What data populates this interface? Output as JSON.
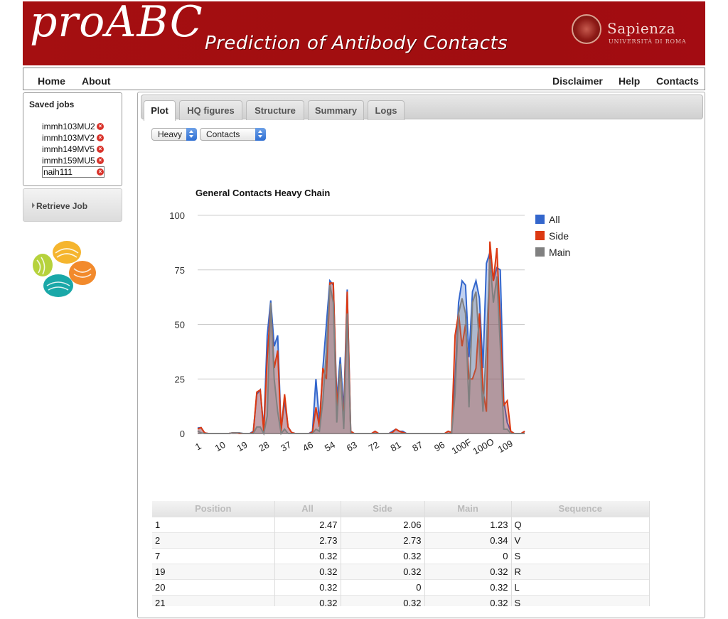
{
  "banner": {
    "logo": "proABC",
    "tagline": "Prediction of Antibody Contacts",
    "university": "Sapienza",
    "university_sub": "UNIVERSITÀ DI ROMA"
  },
  "nav": {
    "left": [
      "Home",
      "About"
    ],
    "right": [
      "Disclaimer",
      "Help",
      "Contacts"
    ]
  },
  "sidebar": {
    "saved_title": "Saved jobs",
    "jobs": [
      "immh103MU2",
      "immh103MV2",
      "immh149MV5",
      "immh159MU5"
    ],
    "current_job": "naih111",
    "retrieve_label": "Retrieve Job"
  },
  "tabs": [
    "Plot",
    "HQ figures",
    "Structure",
    "Summary",
    "Logs"
  ],
  "active_tab": "Plot",
  "selects": {
    "chain": "Heavy",
    "type": "Contacts"
  },
  "chart_data": {
    "type": "area",
    "title": "General Contacts Heavy Chain",
    "xlabel": "",
    "ylabel": "",
    "ylim": [
      0,
      100
    ],
    "yticks": [
      0,
      25,
      50,
      75,
      100
    ],
    "xtick_labels": [
      "1",
      "10",
      "19",
      "28",
      "37",
      "46",
      "54",
      "63",
      "72",
      "81",
      "87",
      "96",
      "100F",
      "100O",
      "109"
    ],
    "legend_position": "right",
    "series": [
      {
        "name": "All",
        "color": "#3366cc",
        "values": [
          2.5,
          2.7,
          0.3,
          0,
          0,
          0,
          0,
          0,
          0,
          0,
          0.3,
          0.3,
          0.3,
          0,
          0,
          0,
          1,
          18,
          20,
          2,
          45,
          61,
          40,
          45,
          2,
          15,
          3,
          0.5,
          0,
          0,
          0,
          0,
          0,
          1,
          25,
          5,
          30,
          50,
          70,
          68,
          15,
          35,
          10,
          66,
          1,
          0,
          0,
          0,
          0,
          0,
          0,
          1,
          0,
          0,
          0,
          0,
          1,
          2,
          1,
          1,
          0,
          0,
          0,
          0,
          0,
          0,
          0,
          0,
          0,
          0,
          0,
          0,
          1,
          0.5,
          25,
          60,
          70,
          68,
          35,
          65,
          70,
          62,
          30,
          78,
          83,
          70,
          76,
          75,
          15,
          5,
          1,
          0,
          0,
          0,
          1
        ]
      },
      {
        "name": "Side",
        "color": "#dc3912",
        "values": [
          2.1,
          2.7,
          0.3,
          0,
          0,
          0,
          0,
          0,
          0,
          0,
          0.3,
          0.3,
          0,
          0,
          0,
          0,
          0.5,
          19,
          20,
          1,
          35,
          58,
          30,
          38,
          1,
          18,
          3,
          0.5,
          0,
          0,
          0,
          0,
          0,
          0.5,
          12,
          3,
          30,
          25,
          69,
          69,
          12,
          30,
          5,
          65,
          1,
          0,
          0,
          0,
          0,
          0,
          0,
          1,
          0,
          0,
          0,
          0,
          0.5,
          2,
          1,
          0.5,
          0,
          0,
          0,
          0,
          0,
          0,
          0,
          0,
          0,
          0,
          0,
          0,
          1,
          0.5,
          45,
          55,
          40,
          50,
          25,
          25,
          30,
          55,
          20,
          10,
          88,
          70,
          85,
          50,
          13,
          15,
          1,
          0,
          0,
          0,
          1
        ]
      },
      {
        "name": "Main",
        "color": "#808080",
        "values": [
          1.2,
          0.3,
          0,
          0,
          0,
          0,
          0,
          0,
          0,
          0,
          0.3,
          0.3,
          0.3,
          0,
          0,
          0,
          0,
          3,
          3,
          0,
          8,
          60,
          25,
          10,
          0,
          2,
          0,
          0,
          0,
          0,
          0,
          0,
          0,
          0,
          2,
          1,
          15,
          38,
          68,
          60,
          5,
          32,
          2,
          55,
          0,
          0,
          0,
          0,
          0,
          0,
          0,
          0,
          0,
          0,
          0,
          0,
          0,
          0,
          0,
          0,
          0,
          0,
          0,
          0,
          0,
          0,
          0,
          0,
          0,
          0,
          0,
          0,
          0,
          0,
          18,
          55,
          62,
          55,
          12,
          60,
          65,
          40,
          10,
          40,
          80,
          60,
          72,
          40,
          2,
          2,
          0,
          0,
          0,
          0,
          0
        ]
      }
    ]
  },
  "table": {
    "headers": [
      "Position",
      "All",
      "Side",
      "Main",
      "Sequence"
    ],
    "rows": [
      [
        "1",
        "2.47",
        "2.06",
        "1.23",
        "Q"
      ],
      [
        "2",
        "2.73",
        "2.73",
        "0.34",
        "V"
      ],
      [
        "7",
        "0.32",
        "0.32",
        "0",
        "S"
      ],
      [
        "19",
        "0.32",
        "0.32",
        "0.32",
        "R"
      ],
      [
        "20",
        "0.32",
        "0",
        "0.32",
        "L"
      ],
      [
        "21",
        "0.32",
        "0.32",
        "0.32",
        "S"
      ]
    ]
  }
}
